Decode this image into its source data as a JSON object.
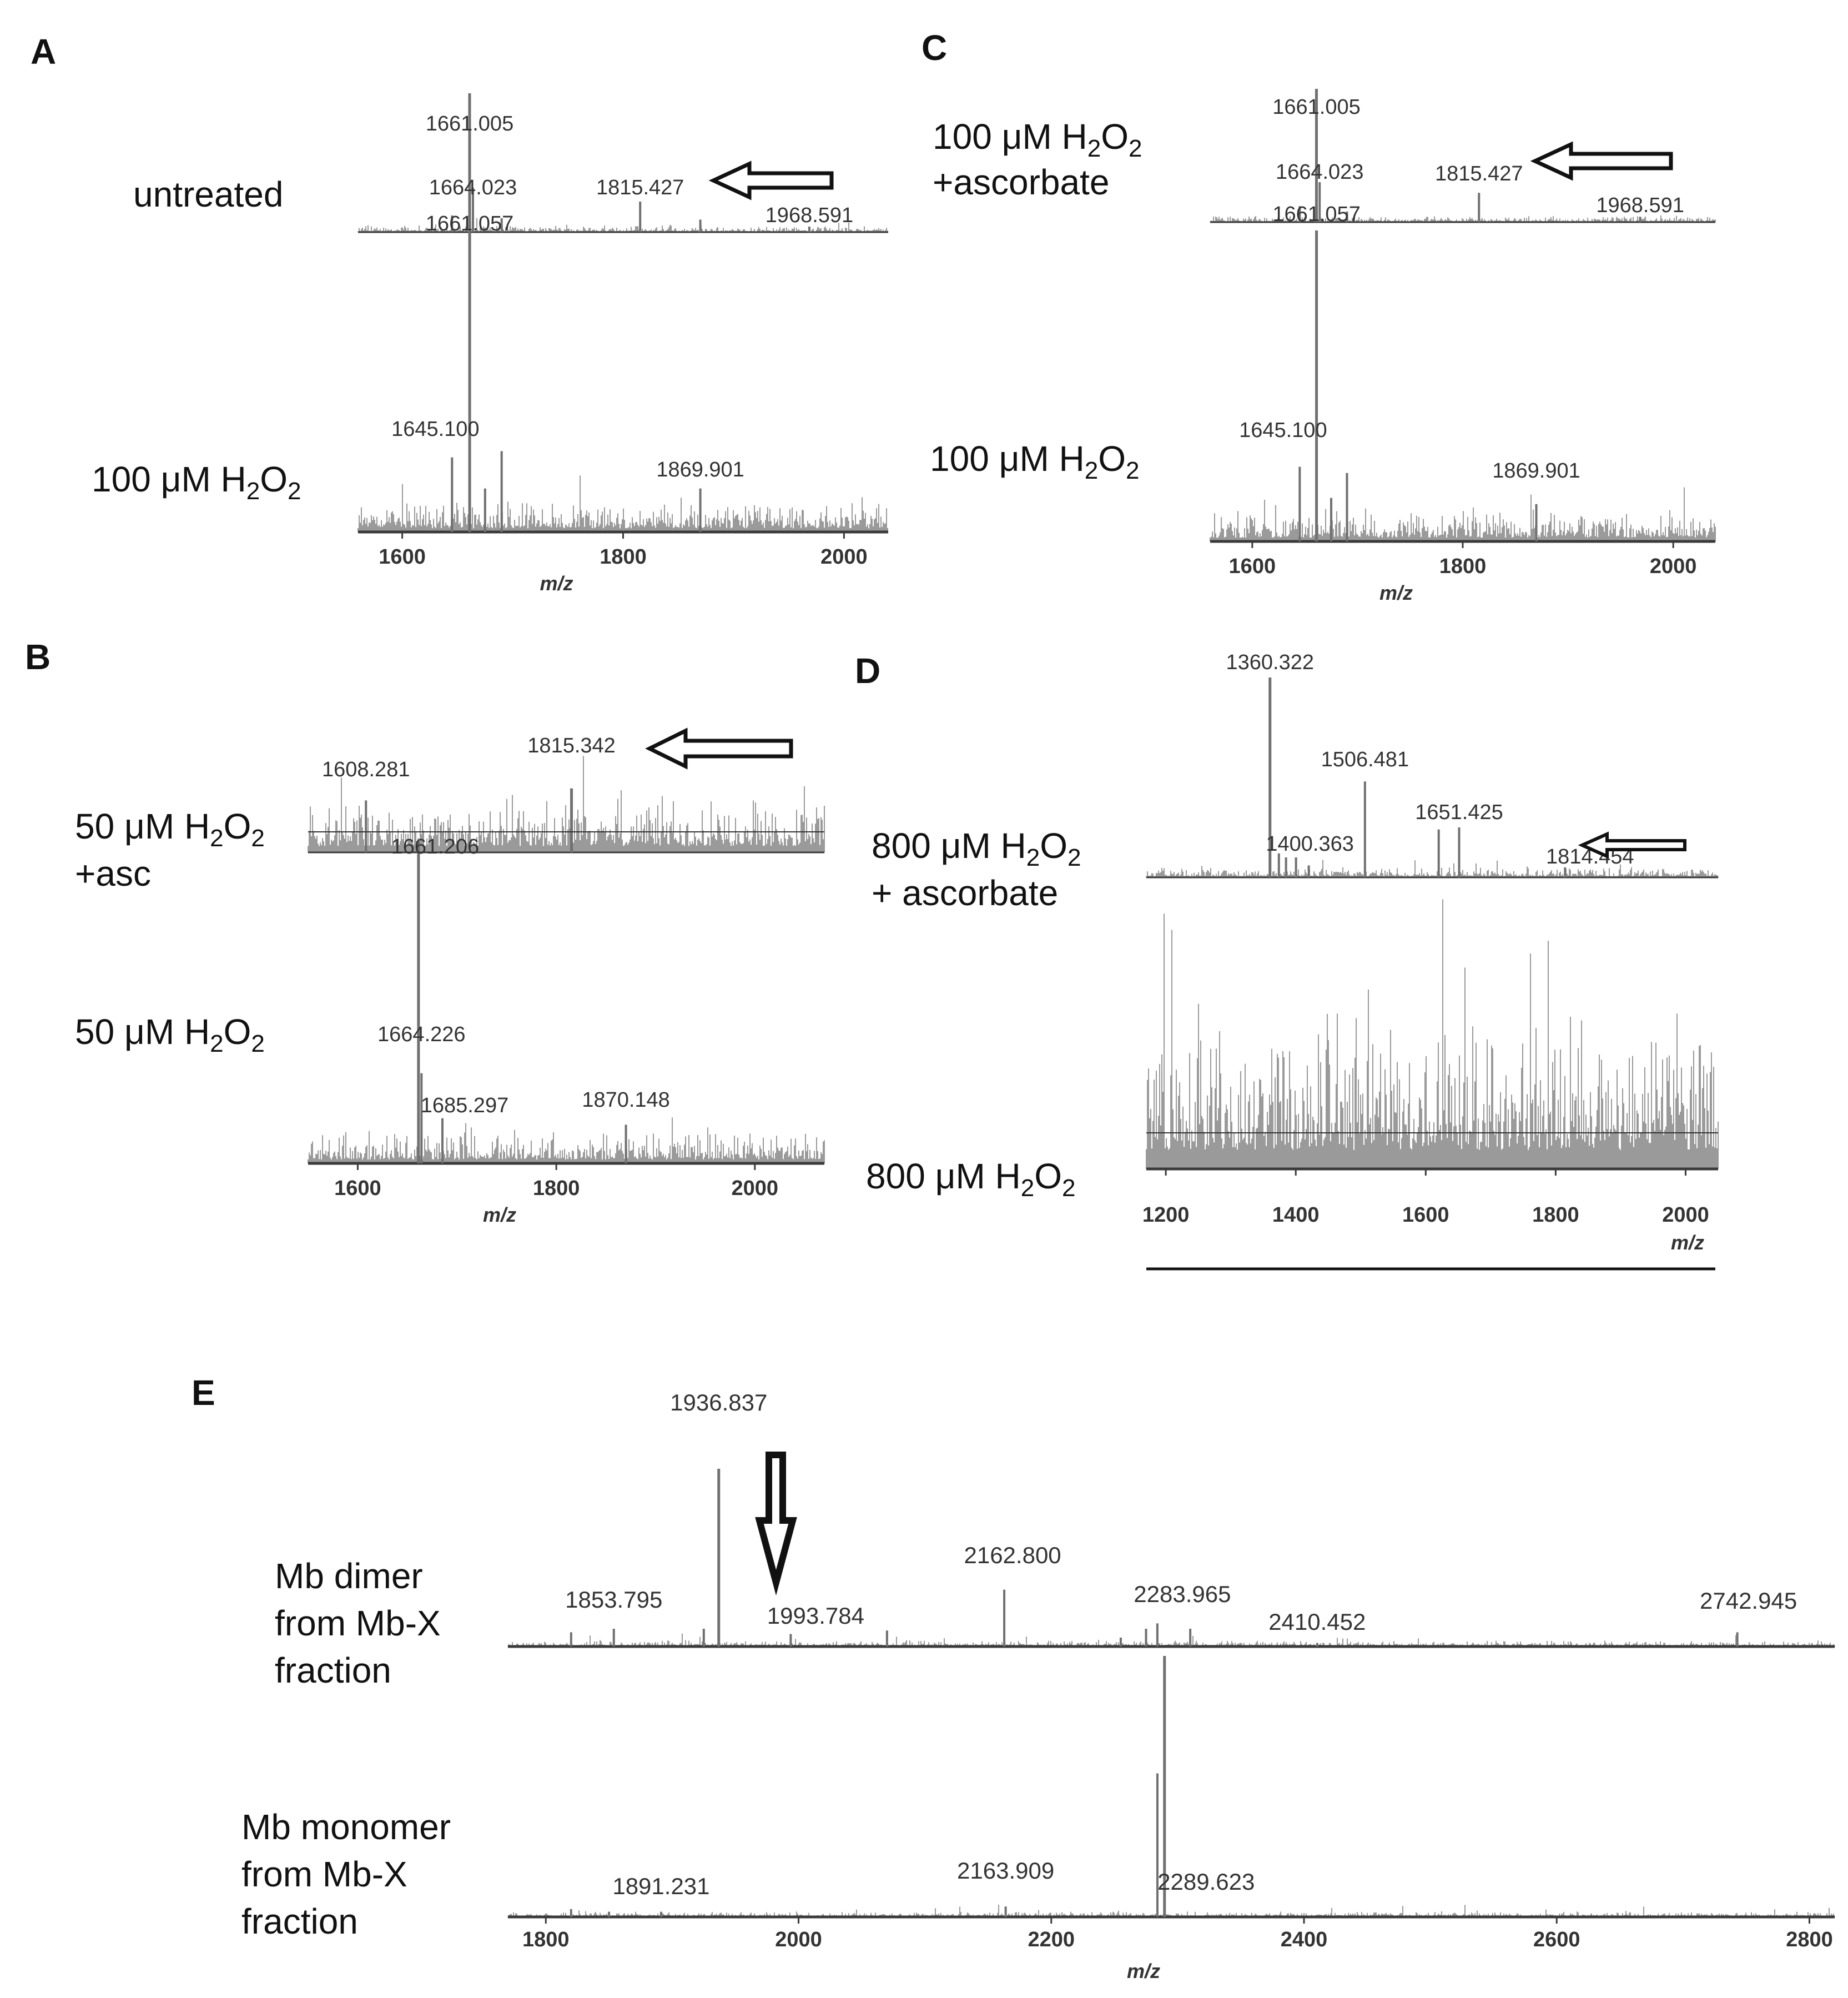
{
  "colors": {
    "spectrum": "#9a9a9a",
    "spectrum_dark": "#707070",
    "axis": "#3a3a3a",
    "arrow": "#111111"
  },
  "panels": {
    "A": {
      "letter": "A",
      "xlabel": "m/z",
      "ticks": [
        "1600",
        "1800",
        "2000"
      ],
      "top_condition": "untreated",
      "bottom_condition": {
        "pre": "100 μM H",
        "sub1": "2",
        "mid": "O",
        "sub2": "2"
      }
    },
    "B": {
      "letter": "B",
      "xlabel": "m/z",
      "ticks": [
        "1600",
        "1800",
        "2000"
      ],
      "top_condition": {
        "pre": "50 μM H",
        "sub1": "2",
        "mid": "O",
        "sub2": "2",
        "line2": "+asc"
      },
      "bottom_condition": {
        "pre": "50 μM H",
        "sub1": "2",
        "mid": "O",
        "sub2": "2"
      }
    },
    "C": {
      "letter": "C",
      "xlabel": "m/z",
      "ticks": [
        "1600",
        "1800",
        "2000"
      ],
      "top_condition": {
        "pre": "100 μM H",
        "sub1": "2",
        "mid": "O",
        "sub2": "2",
        "line2": "+ascorbate"
      },
      "bottom_condition": {
        "pre": "100 μM H",
        "sub1": "2",
        "mid": "O",
        "sub2": "2"
      }
    },
    "D": {
      "letter": "D",
      "xlabel": "m/z",
      "ticks": [
        "1200",
        "1400",
        "1600",
        "1800",
        "2000"
      ],
      "top_condition": {
        "pre": "800 μM H",
        "sub1": "2",
        "mid": "O",
        "sub2": "2",
        "line2": "+ ascorbate"
      },
      "bottom_condition": {
        "pre": "800 μM H",
        "sub1": "2",
        "mid": "O",
        "sub2": "2"
      }
    },
    "E": {
      "letter": "E",
      "xlabel": "m/z",
      "ticks": [
        "1800",
        "2000",
        "2200",
        "2400",
        "2600",
        "2800"
      ],
      "top_condition": [
        "Mb dimer",
        "from Mb-X",
        "fraction"
      ],
      "bottom_condition": [
        "Mb monomer",
        "from Mb-X",
        "fraction"
      ]
    }
  },
  "chart_data": [
    {
      "panel": "A",
      "type": "line",
      "xlabel": "m/z",
      "xlim": [
        1560,
        2040
      ],
      "series": [
        {
          "name": "untreated",
          "ylim": [
            0,
            100
          ],
          "noise": 3,
          "peaks": [
            {
              "x": 1661.005,
              "y": 100,
              "label": "1661.005"
            },
            {
              "x": 1664.023,
              "y": 32,
              "label": "1664.023"
            },
            {
              "x": 1815.427,
              "y": 22,
              "label": "1815.427"
            },
            {
              "x": 1968.591,
              "y": 4,
              "label": "1968.591"
            },
            {
              "x": 1869.9,
              "y": 9
            },
            {
              "x": 1645.1,
              "y": 12
            },
            {
              "x": 1690,
              "y": 10
            }
          ]
        },
        {
          "name": "100 μM H2O2",
          "ylim": [
            0,
            100
          ],
          "noise": 6,
          "peaks": [
            {
              "x": 1661.057,
              "y": 100,
              "label": "1661.057"
            },
            {
              "x": 1645.1,
              "y": 24,
              "label": "1645.100"
            },
            {
              "x": 1869.901,
              "y": 14,
              "label": "1869.901"
            },
            {
              "x": 1690,
              "y": 26
            },
            {
              "x": 1675,
              "y": 14
            }
          ]
        }
      ]
    },
    {
      "panel": "B",
      "type": "line",
      "xlabel": "m/z",
      "xlim": [
        1550,
        2070
      ],
      "series": [
        {
          "name": "50 μM H2O2 +asc",
          "ylim": [
            0,
            100
          ],
          "noise": 32,
          "peaks": [
            {
              "x": 1608.281,
              "y": 52,
              "label": "1608.281"
            },
            {
              "x": 1815.342,
              "y": 64,
              "label": "1815.342"
            }
          ]
        },
        {
          "name": "50 μM H2O2",
          "ylim": [
            0,
            100
          ],
          "noise": 6,
          "peaks": [
            {
              "x": 1661.206,
              "y": 100,
              "label": "1661.206"
            },
            {
              "x": 1664.226,
              "y": 28,
              "label": "1664.226"
            },
            {
              "x": 1685.297,
              "y": 14,
              "label": "1685.297"
            },
            {
              "x": 1870.148,
              "y": 12,
              "label": "1870.148"
            }
          ]
        }
      ]
    },
    {
      "panel": "C",
      "type": "line",
      "xlabel": "m/z",
      "xlim": [
        1560,
        2040
      ],
      "series": [
        {
          "name": "100 μM H2O2 +ascorbate",
          "ylim": [
            0,
            100
          ],
          "noise": 3,
          "peaks": [
            {
              "x": 1661.005,
              "y": 100,
              "label": "1661.005"
            },
            {
              "x": 1664.023,
              "y": 30,
              "label": "1664.023"
            },
            {
              "x": 1815.427,
              "y": 22,
              "label": "1815.427"
            },
            {
              "x": 1968.591,
              "y": 4,
              "label": "1968.591"
            },
            {
              "x": 1645.1,
              "y": 12
            },
            {
              "x": 1690,
              "y": 8
            }
          ]
        },
        {
          "name": "100 μM H2O2",
          "ylim": [
            0,
            100
          ],
          "noise": 6,
          "peaks": [
            {
              "x": 1661.057,
              "y": 100,
              "label": "1661.057"
            },
            {
              "x": 1645.1,
              "y": 24,
              "label": "1645.100"
            },
            {
              "x": 1869.901,
              "y": 12,
              "label": "1869.901"
            },
            {
              "x": 1690,
              "y": 22
            },
            {
              "x": 1675,
              "y": 14
            }
          ]
        }
      ]
    },
    {
      "panel": "D",
      "type": "line",
      "xlabel": "m/z",
      "xlim": [
        1170,
        2050
      ],
      "series": [
        {
          "name": "800 μM H2O2 + ascorbate",
          "ylim": [
            0,
            100
          ],
          "noise": 3,
          "peaks": [
            {
              "x": 1360.322,
              "y": 100,
              "label": "1360.322"
            },
            {
              "x": 1400.363,
              "y": 10,
              "label": "1400.363"
            },
            {
              "x": 1506.481,
              "y": 48,
              "label": "1506.481"
            },
            {
              "x": 1651.425,
              "y": 25,
              "label": "1651.425"
            },
            {
              "x": 1814.454,
              "y": 5,
              "label": "1814.454"
            },
            {
              "x": 1374,
              "y": 12
            },
            {
              "x": 1385,
              "y": 10
            },
            {
              "x": 1420,
              "y": 6
            },
            {
              "x": 1620,
              "y": 24
            }
          ]
        },
        {
          "name": "800 μM H2O2",
          "ylim": [
            0,
            100
          ],
          "noise": 55,
          "peaks": []
        }
      ]
    },
    {
      "panel": "E",
      "type": "line",
      "xlabel": "m/z",
      "xlim": [
        1770,
        2820
      ],
      "series": [
        {
          "name": "Mb dimer from Mb-X fraction",
          "ylim": [
            0,
            100
          ],
          "noise": 2,
          "peaks": [
            {
              "x": 1936.837,
              "y": 100,
              "label": "1936.837"
            },
            {
              "x": 1853.795,
              "y": 10,
              "label": "1853.795"
            },
            {
              "x": 1993.784,
              "y": 7,
              "label": "1993.784"
            },
            {
              "x": 2162.8,
              "y": 32,
              "label": "2162.800"
            },
            {
              "x": 2283.965,
              "y": 13,
              "label": "2283.965"
            },
            {
              "x": 2410.452,
              "y": 2,
              "label": "2410.452"
            },
            {
              "x": 2742.945,
              "y": 8,
              "label": "2742.945"
            },
            {
              "x": 1820,
              "y": 8
            },
            {
              "x": 1925,
              "y": 10
            },
            {
              "x": 2070,
              "y": 9
            },
            {
              "x": 2255,
              "y": 5
            },
            {
              "x": 2275,
              "y": 10
            },
            {
              "x": 2310,
              "y": 10
            }
          ]
        },
        {
          "name": "Mb monomer from Mb-X fraction",
          "ylim": [
            0,
            100
          ],
          "noise": 1.2,
          "peaks": [
            {
              "x": 2289.623,
              "y": 100,
              "label": "2289.623"
            },
            {
              "x": 2284,
              "y": 55
            },
            {
              "x": 2163.909,
              "y": 4,
              "label": "2163.909"
            },
            {
              "x": 1891.231,
              "y": 2,
              "label": "1891.231"
            },
            {
              "x": 1820,
              "y": 3
            },
            {
              "x": 1850,
              "y": 2
            }
          ]
        }
      ]
    }
  ]
}
